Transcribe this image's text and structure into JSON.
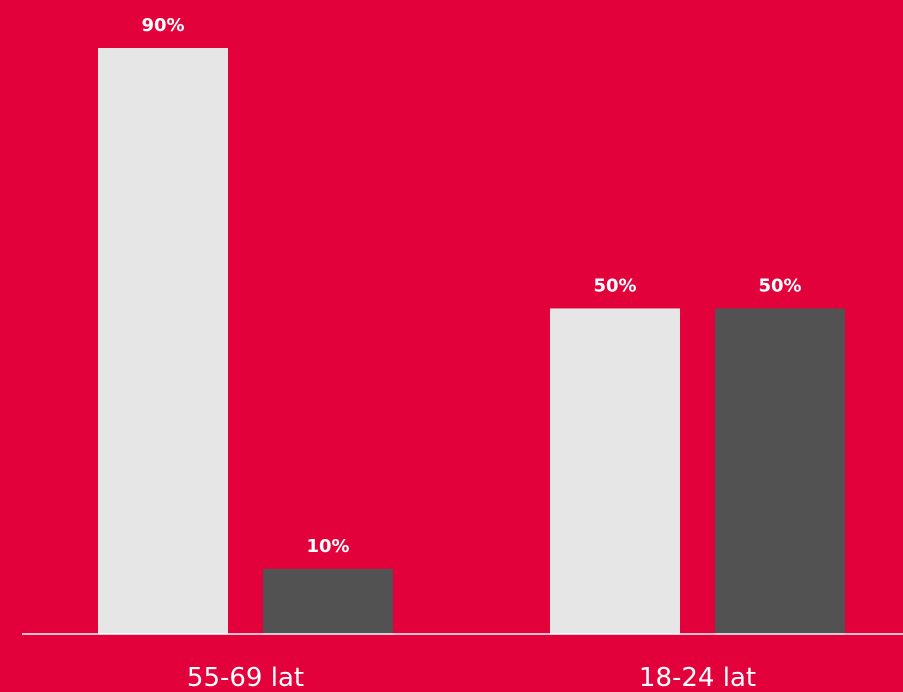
{
  "colors": {
    "background": "#e2013b",
    "series_1": "#e6e6e6",
    "series_2": "#525252",
    "axis": "#ffffff"
  },
  "chart_data": {
    "type": "bar",
    "categories": [
      "55-69 lat",
      "18-24 lat"
    ],
    "series": [
      {
        "values": [
          90,
          10
        ],
        "labels": [
          "90%",
          "10%"
        ]
      },
      {
        "values": [
          50,
          50
        ],
        "labels": [
          "50%",
          "50%"
        ]
      }
    ],
    "grouping": "per-category",
    "ylim": [
      0,
      100
    ],
    "unit": "%",
    "grid": false,
    "legend": "none"
  }
}
